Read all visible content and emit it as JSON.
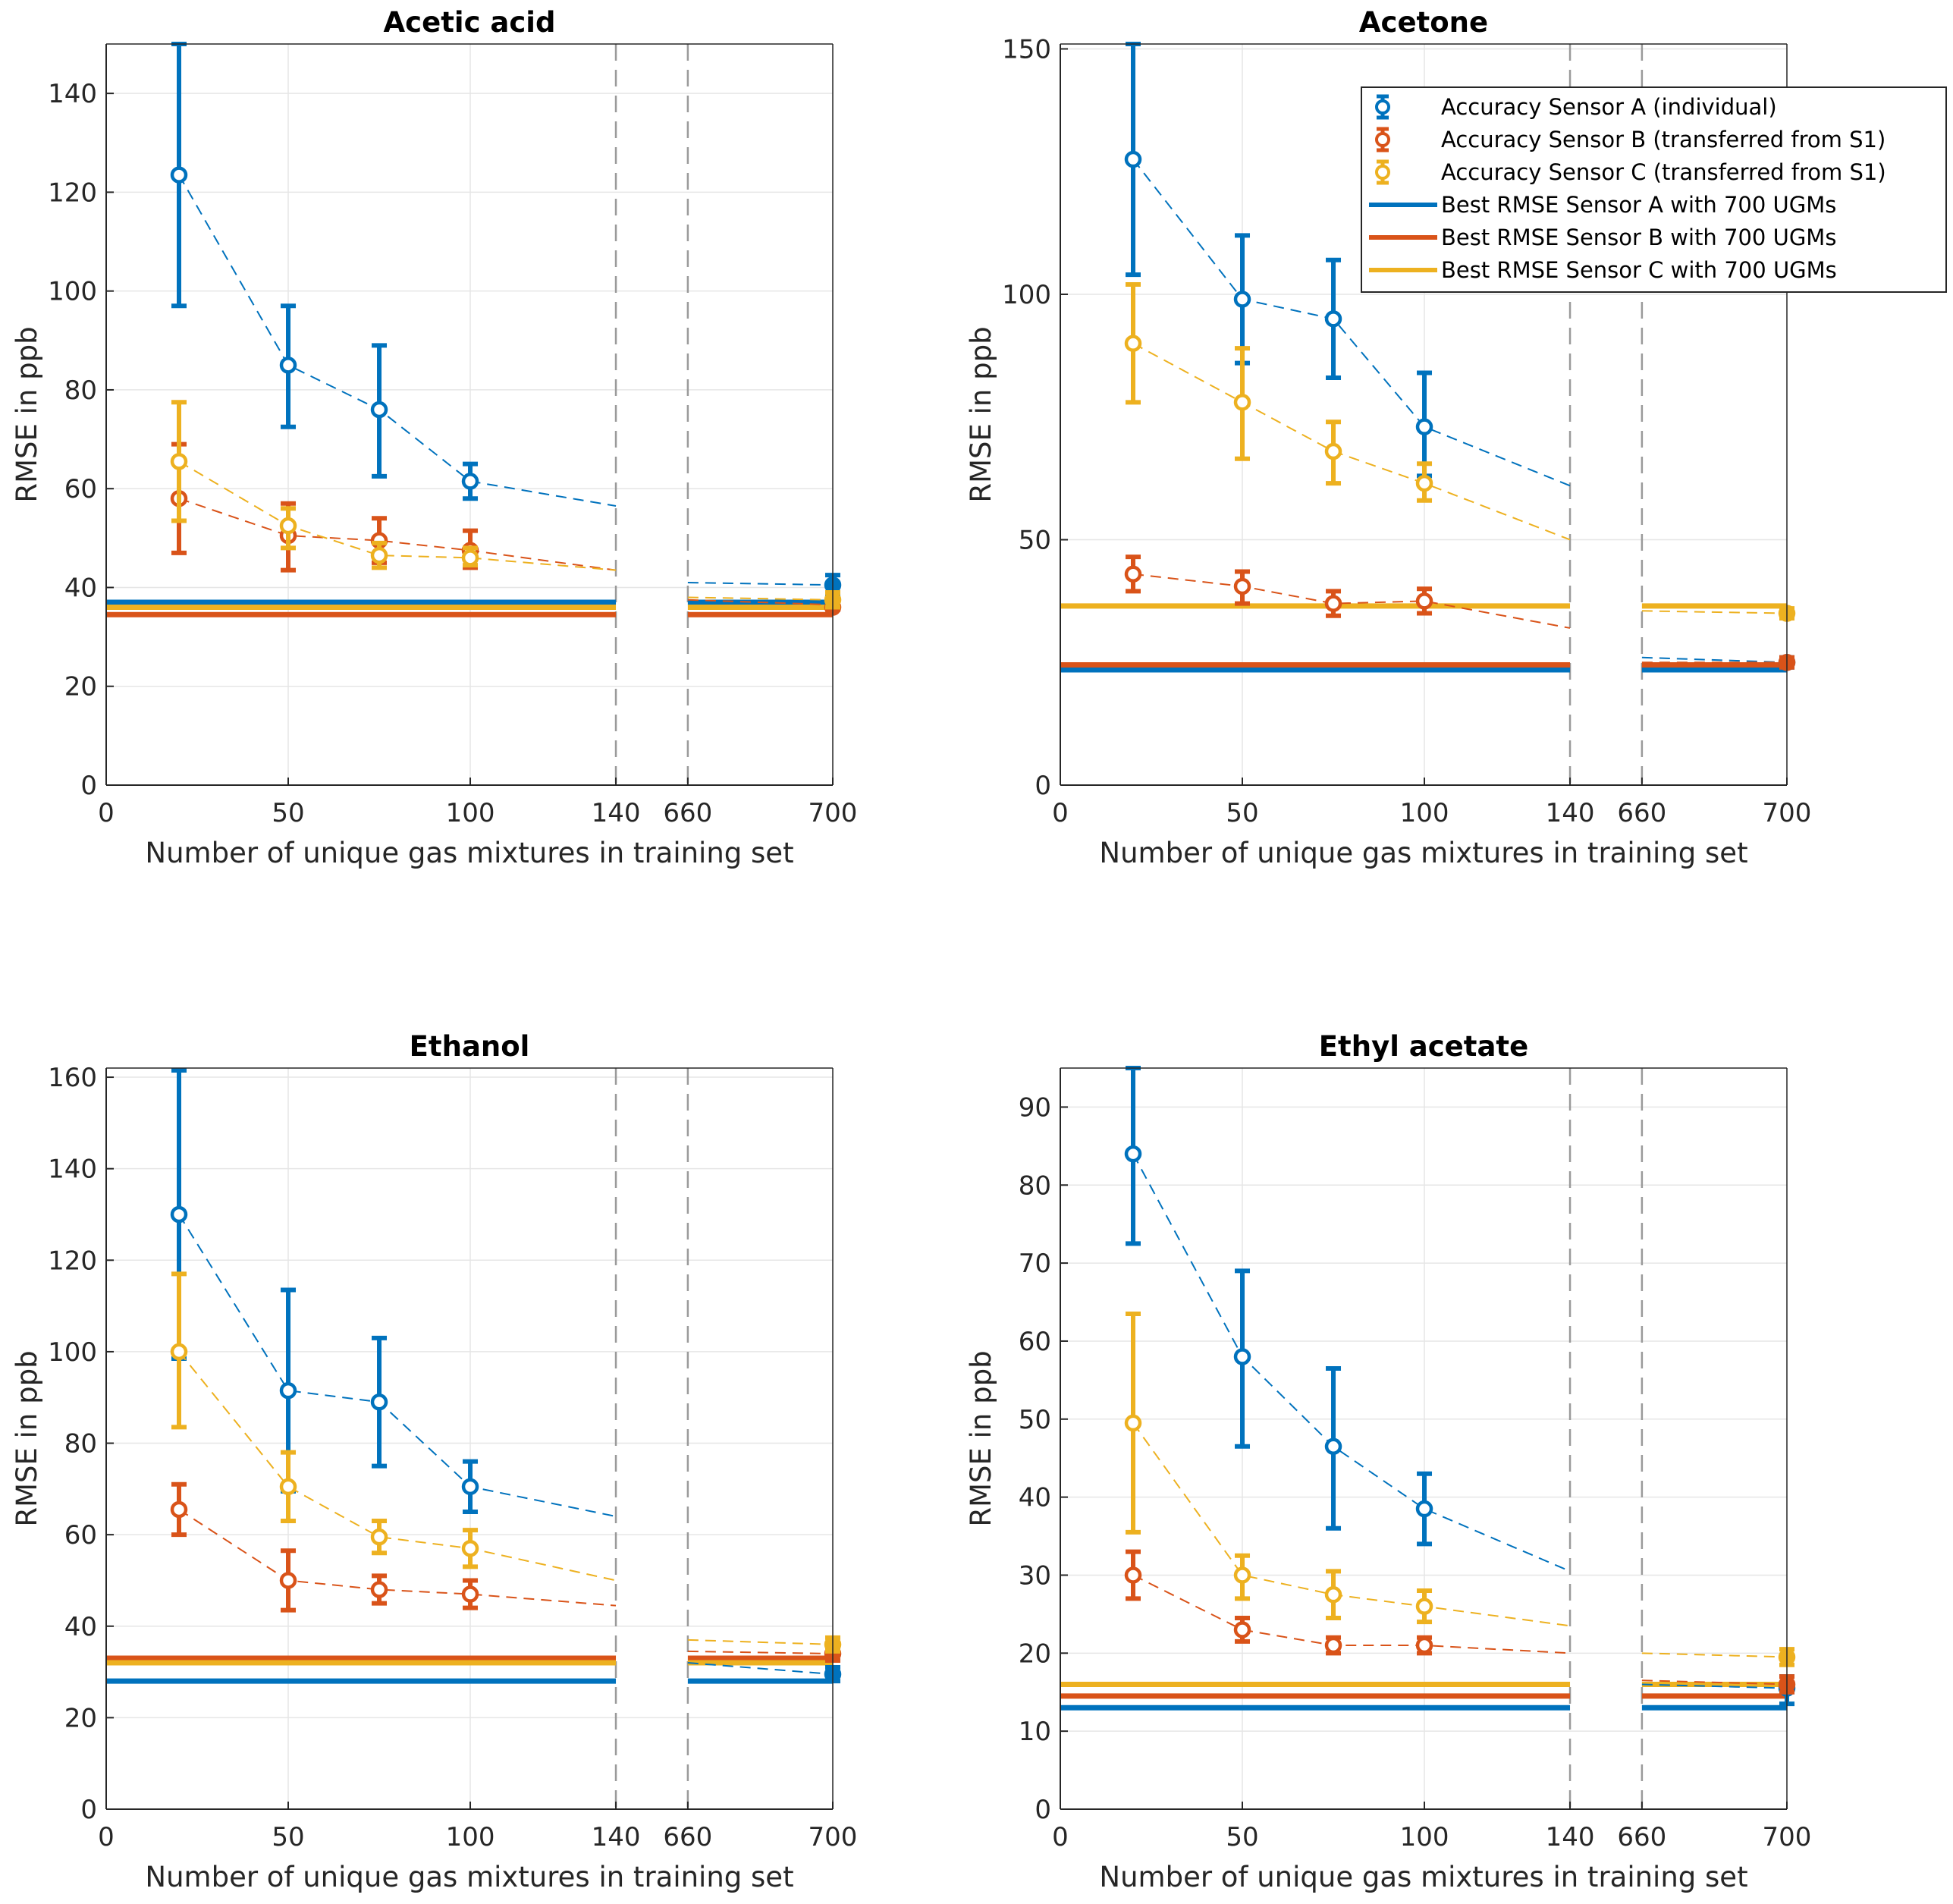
{
  "colors": {
    "A": "#0072BD",
    "B": "#D95319",
    "C": "#EDB120",
    "grid": "#E6E6E6",
    "axis": "#262626",
    "break": "#9A9A9A"
  },
  "legend": [
    {
      "key": "A",
      "kind": "marker",
      "label": "Accuracy Sensor A (individual)"
    },
    {
      "key": "B",
      "kind": "marker",
      "label": "Accuracy Sensor B (transferred from S1)"
    },
    {
      "key": "C",
      "kind": "marker",
      "label": "Accuracy Sensor C (transferred from S1)"
    },
    {
      "key": "A",
      "kind": "line",
      "label": "Best RMSE Sensor A with 700 UGMs"
    },
    {
      "key": "B",
      "kind": "line",
      "label": "Best RMSE Sensor B with 700 UGMs"
    },
    {
      "key": "C",
      "kind": "line",
      "label": "Best RMSE Sensor C with 700 UGMs"
    }
  ],
  "chart_data": [
    {
      "type": "line",
      "title": "Acetic acid",
      "xlabel": "Number of unique gas mixtures in training set",
      "ylabel": "RMSE in ppb",
      "x_tick_labels": [
        "0",
        "50",
        "100",
        "140",
        "660",
        "700"
      ],
      "y_ticks": [
        0,
        20,
        40,
        60,
        80,
        100,
        120,
        140
      ],
      "ylim": [
        0,
        150
      ],
      "x_break": [
        140,
        660
      ],
      "legend": false,
      "series": [
        {
          "key": "A",
          "name": "Accuracy Sensor A (individual)",
          "x": [
            20,
            50,
            75,
            100,
            700
          ],
          "y": [
            123.5,
            85,
            76,
            61.5,
            40.5
          ],
          "err_low": [
            97,
            72.5,
            62.5,
            58,
            38.5
          ],
          "err_high": [
            150,
            97,
            89,
            65,
            42.5
          ],
          "trend_end": [
            140,
            56.5
          ],
          "trend_tail": [
            [
              660,
              41
            ],
            [
              700,
              40.5
            ]
          ]
        },
        {
          "key": "B",
          "name": "Accuracy Sensor B (transferred from S1)",
          "x": [
            20,
            50,
            75,
            100,
            700
          ],
          "y": [
            58,
            50.5,
            49.5,
            47.5,
            36
          ],
          "err_low": [
            47,
            43.5,
            45,
            44,
            35.5
          ],
          "err_high": [
            69,
            57,
            54,
            51.5,
            37
          ],
          "trend_end": [
            140,
            43.5
          ],
          "trend_tail": [
            [
              660,
              37.5
            ],
            [
              700,
              36.5
            ]
          ]
        },
        {
          "key": "C",
          "name": "Accuracy Sensor C (transferred from S1)",
          "x": [
            20,
            50,
            75,
            100,
            700
          ],
          "y": [
            65.5,
            52.5,
            46.5,
            46,
            37.5
          ],
          "err_low": [
            53.5,
            48,
            44,
            44.5,
            36
          ],
          "err_high": [
            77.5,
            56,
            49,
            48,
            39
          ],
          "trend_end": [
            140,
            43.5
          ],
          "trend_tail": [
            [
              660,
              38
            ],
            [
              700,
              37.5
            ]
          ]
        }
      ],
      "baselines": [
        {
          "key": "A",
          "value": 37
        },
        {
          "key": "B",
          "value": 34.5
        },
        {
          "key": "C",
          "value": 36
        }
      ]
    },
    {
      "type": "line",
      "title": "Acetone",
      "xlabel": "Number of unique gas mixtures in training set",
      "ylabel": "RMSE in ppb",
      "x_tick_labels": [
        "0",
        "50",
        "100",
        "140",
        "660",
        "700"
      ],
      "y_ticks": [
        0,
        50,
        100,
        150
      ],
      "ylim": [
        0,
        151
      ],
      "x_break": [
        140,
        660
      ],
      "legend": true,
      "series": [
        {
          "key": "A",
          "name": "Accuracy Sensor A (individual)",
          "x": [
            20,
            50,
            75,
            100,
            700
          ],
          "y": [
            127.5,
            99,
            95,
            73,
            25
          ],
          "err_low": [
            104,
            86,
            83,
            63,
            24
          ],
          "err_high": [
            151,
            112,
            107,
            84,
            26
          ],
          "trend_end": [
            140,
            61
          ],
          "trend_tail": [
            [
              660,
              26
            ],
            [
              700,
              25
            ]
          ]
        },
        {
          "key": "B",
          "name": "Accuracy Sensor B (transferred from S1)",
          "x": [
            20,
            50,
            75,
            100,
            700
          ],
          "y": [
            43,
            40.5,
            37,
            37.5,
            25
          ],
          "err_low": [
            39.5,
            37,
            34.5,
            35,
            24
          ],
          "err_high": [
            46.5,
            43.5,
            39.5,
            40,
            26
          ],
          "trend_end": [
            140,
            32
          ],
          "trend_tail": [
            [
              660,
              25
            ],
            [
              700,
              25
            ]
          ]
        },
        {
          "key": "C",
          "name": "Accuracy Sensor C (transferred from S1)",
          "x": [
            20,
            50,
            75,
            100,
            700
          ],
          "y": [
            90,
            78,
            68,
            61.5,
            35
          ],
          "err_low": [
            78,
            66.5,
            61.5,
            58,
            34
          ],
          "err_high": [
            102,
            89,
            74,
            65.5,
            36
          ],
          "trend_end": [
            140,
            50
          ],
          "trend_tail": [
            [
              660,
              35.5
            ],
            [
              700,
              35
            ]
          ]
        }
      ],
      "baselines": [
        {
          "key": "A",
          "value": 23.5
        },
        {
          "key": "B",
          "value": 24.5
        },
        {
          "key": "C",
          "value": 36.5
        }
      ]
    },
    {
      "type": "line",
      "title": "Ethanol",
      "xlabel": "Number of unique gas mixtures in training set",
      "ylabel": "RMSE in ppb",
      "x_tick_labels": [
        "0",
        "50",
        "100",
        "140",
        "660",
        "700"
      ],
      "y_ticks": [
        0,
        20,
        40,
        60,
        80,
        100,
        120,
        140,
        160
      ],
      "ylim": [
        0,
        162
      ],
      "x_break": [
        140,
        660
      ],
      "legend": false,
      "series": [
        {
          "key": "A",
          "name": "Accuracy Sensor A (individual)",
          "x": [
            20,
            50,
            75,
            100,
            700
          ],
          "y": [
            130,
            91.5,
            89,
            70.5,
            29.5
          ],
          "err_low": [
            98.5,
            69.5,
            75,
            65,
            28
          ],
          "err_high": [
            161.5,
            113.5,
            103,
            76,
            31
          ],
          "trend_end": [
            140,
            64
          ],
          "trend_tail": [
            [
              660,
              32
            ],
            [
              700,
              29.5
            ]
          ]
        },
        {
          "key": "B",
          "name": "Accuracy Sensor B (transferred from S1)",
          "x": [
            20,
            50,
            75,
            100,
            700
          ],
          "y": [
            65.5,
            50,
            48,
            47,
            34
          ],
          "err_low": [
            60,
            43.5,
            45,
            44,
            32.5
          ],
          "err_high": [
            71,
            56.5,
            51,
            50,
            35.5
          ],
          "trend_end": [
            140,
            44.5
          ],
          "trend_tail": [
            [
              660,
              34.5
            ],
            [
              700,
              34
            ]
          ]
        },
        {
          "key": "C",
          "name": "Accuracy Sensor C (transferred from S1)",
          "x": [
            20,
            50,
            75,
            100,
            700
          ],
          "y": [
            100,
            70.5,
            59.5,
            57,
            36
          ],
          "err_low": [
            83.5,
            63,
            56,
            53,
            34.5
          ],
          "err_high": [
            117,
            78,
            63,
            61,
            37.5
          ],
          "trend_end": [
            140,
            50
          ],
          "trend_tail": [
            [
              660,
              37
            ],
            [
              700,
              36
            ]
          ]
        }
      ],
      "baselines": [
        {
          "key": "A",
          "value": 28
        },
        {
          "key": "B",
          "value": 33
        },
        {
          "key": "C",
          "value": 32
        }
      ]
    },
    {
      "type": "line",
      "title": "Ethyl acetate",
      "xlabel": "Number of unique gas mixtures in training set",
      "ylabel": "RMSE in ppb",
      "x_tick_labels": [
        "0",
        "50",
        "100",
        "140",
        "660",
        "700"
      ],
      "y_ticks": [
        0,
        10,
        20,
        30,
        40,
        50,
        60,
        70,
        80,
        90
      ],
      "ylim": [
        0,
        95
      ],
      "x_break": [
        140,
        660
      ],
      "legend": false,
      "series": [
        {
          "key": "A",
          "name": "Accuracy Sensor A (individual)",
          "x": [
            20,
            50,
            75,
            100,
            700
          ],
          "y": [
            84,
            58,
            46.5,
            38.5,
            15.5
          ],
          "err_low": [
            72.5,
            46.5,
            36,
            34,
            13.5
          ],
          "err_high": [
            95,
            69,
            56.5,
            43,
            17
          ],
          "trend_end": [
            140,
            30.5
          ],
          "trend_tail": [
            [
              660,
              16
            ],
            [
              700,
              15.5
            ]
          ]
        },
        {
          "key": "B",
          "name": "Accuracy Sensor B (transferred from S1)",
          "x": [
            20,
            50,
            75,
            100,
            700
          ],
          "y": [
            30,
            23,
            21,
            21,
            16
          ],
          "err_low": [
            27,
            21.5,
            20,
            20,
            15
          ],
          "err_high": [
            33,
            24.5,
            22,
            22,
            17
          ],
          "trend_end": [
            140,
            20
          ],
          "trend_tail": [
            [
              660,
              16.5
            ],
            [
              700,
              16
            ]
          ]
        },
        {
          "key": "C",
          "name": "Accuracy Sensor C (transferred from S1)",
          "x": [
            20,
            50,
            75,
            100,
            700
          ],
          "y": [
            49.5,
            30,
            27.5,
            26,
            19.5
          ],
          "err_low": [
            35.5,
            27,
            24.5,
            24,
            18.5
          ],
          "err_high": [
            63.5,
            32.5,
            30.5,
            28,
            20.5
          ],
          "trend_end": [
            140,
            23.5
          ],
          "trend_tail": [
            [
              660,
              20
            ],
            [
              700,
              19.5
            ]
          ]
        }
      ],
      "baselines": [
        {
          "key": "A",
          "value": 13
        },
        {
          "key": "B",
          "value": 14.5
        },
        {
          "key": "C",
          "value": 16
        }
      ]
    }
  ]
}
